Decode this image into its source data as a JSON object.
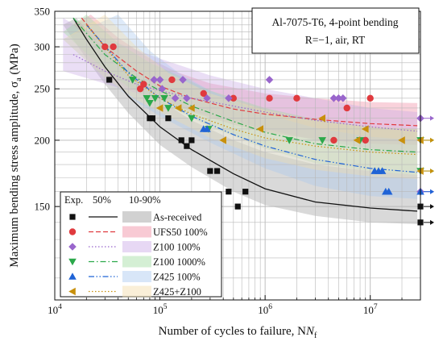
{
  "chart_data": {
    "type": "scatter",
    "title": "",
    "xlabel": "Number of cycles to failure, N",
    "xlabel_sub": "f",
    "ylabel": "Maximum bending stress amplitude, σ",
    "ylabel_sub": "a",
    "ylabel_unit": " (MPa)",
    "x_scale": "log",
    "y_scale": "log",
    "xlim": [
      10000,
      30000000
    ],
    "ylim": [
      100,
      350
    ],
    "x_ticks": [
      10000,
      100000,
      1000000,
      10000000
    ],
    "x_tick_labels": [
      [
        "10",
        "4"
      ],
      [
        "10",
        "5"
      ],
      [
        "10",
        "6"
      ],
      [
        "10",
        "7"
      ]
    ],
    "y_ticks": [
      150,
      200,
      250,
      300,
      350
    ],
    "y_tick_labels": [
      "150",
      "200",
      "250",
      "300",
      "350"
    ],
    "grid": true,
    "annotation_lines": [
      "Al-7075-T6, 4-point bending",
      "R=−1, air, RT"
    ],
    "legend_headers": [
      "Exp.",
      "50%",
      "10-90%"
    ],
    "legend_position": "bottom-left",
    "runout_x": 30000000,
    "series": [
      {
        "name": "As-received",
        "color": "#111111",
        "band_color": "#9a9a9a",
        "marker": "square",
        "line_style": "solid",
        "points": [
          [
            33000,
            260
          ],
          [
            80000,
            220
          ],
          [
            85000,
            220
          ],
          [
            120000,
            220
          ],
          [
            160000,
            200
          ],
          [
            200000,
            200
          ],
          [
            180000,
            195
          ],
          [
            300000,
            175
          ],
          [
            350000,
            175
          ],
          [
            450000,
            160
          ],
          [
            650000,
            160
          ],
          [
            550000,
            150
          ]
        ],
        "runouts": [
          150,
          140
        ],
        "fit50": [
          [
            15000,
            340
          ],
          [
            20000,
            310
          ],
          [
            30000,
            275
          ],
          [
            50000,
            242
          ],
          [
            100000,
            212
          ],
          [
            200000,
            192
          ],
          [
            500000,
            173
          ],
          [
            1000000,
            162
          ],
          [
            3000000,
            153
          ],
          [
            10000000,
            149
          ],
          [
            28000000,
            147
          ]
        ],
        "band_upper": [
          [
            16000,
            340
          ],
          [
            30000,
            295
          ],
          [
            50000,
            265
          ],
          [
            100000,
            238
          ],
          [
            200000,
            218
          ],
          [
            500000,
            200
          ],
          [
            1000000,
            190
          ],
          [
            3000000,
            180
          ],
          [
            10000000,
            175
          ],
          [
            28000000,
            172
          ]
        ],
        "band_lower": [
          [
            12000,
            330
          ],
          [
            20000,
            285
          ],
          [
            30000,
            255
          ],
          [
            50000,
            225
          ],
          [
            100000,
            196
          ],
          [
            200000,
            178
          ],
          [
            500000,
            160
          ],
          [
            1000000,
            151
          ],
          [
            3000000,
            144
          ],
          [
            10000000,
            140
          ],
          [
            28000000,
            139
          ]
        ]
      },
      {
        "name": "UFS50 100%",
        "color": "#e03a3e",
        "band_color": "#f08aa0",
        "marker": "circle",
        "line_style": "dashed",
        "points": [
          [
            30000,
            300
          ],
          [
            36000,
            300
          ],
          [
            65000,
            250
          ],
          [
            70000,
            255
          ],
          [
            130000,
            260
          ],
          [
            260000,
            245
          ],
          [
            500000,
            240
          ],
          [
            1100000,
            240
          ],
          [
            2000000,
            240
          ],
          [
            4500000,
            200
          ],
          [
            6000000,
            230
          ],
          [
            9000000,
            200
          ],
          [
            10000000,
            240
          ]
        ],
        "runouts": [],
        "fit50": [
          [
            18000,
            340
          ],
          [
            30000,
            300
          ],
          [
            60000,
            270
          ],
          [
            100000,
            253
          ],
          [
            200000,
            240
          ],
          [
            500000,
            229
          ],
          [
            1000000,
            224
          ],
          [
            3000000,
            219
          ],
          [
            10000000,
            215
          ],
          [
            28000000,
            213
          ]
        ],
        "band_upper": [
          [
            22000,
            345
          ],
          [
            40000,
            312
          ],
          [
            80000,
            285
          ],
          [
            150000,
            268
          ],
          [
            300000,
            256
          ],
          [
            1000000,
            245
          ],
          [
            3000000,
            240
          ],
          [
            10000000,
            236
          ],
          [
            28000000,
            235
          ]
        ],
        "band_lower": [
          [
            15000,
            330
          ],
          [
            30000,
            290
          ],
          [
            60000,
            258
          ],
          [
            100000,
            240
          ],
          [
            200000,
            226
          ],
          [
            500000,
            214
          ],
          [
            1000000,
            207
          ],
          [
            3000000,
            201
          ],
          [
            10000000,
            197
          ],
          [
            28000000,
            196
          ]
        ]
      },
      {
        "name": "Z100 100%",
        "color": "#9966cc",
        "band_color": "#c9a8e6",
        "marker": "diamond",
        "line_style": "dotted",
        "points": [
          [
            88000,
            260
          ],
          [
            100000,
            260
          ],
          [
            105000,
            250
          ],
          [
            140000,
            240
          ],
          [
            165000,
            260
          ],
          [
            180000,
            240
          ],
          [
            280000,
            240
          ],
          [
            450000,
            240
          ],
          [
            1100000,
            260
          ],
          [
            4500000,
            240
          ],
          [
            5000000,
            240
          ],
          [
            5500000,
            240
          ]
        ],
        "runouts": [
          220,
          160
        ],
        "fit50": [
          [
            15000,
            290
          ],
          [
            30000,
            270
          ],
          [
            60000,
            255
          ],
          [
            100000,
            248
          ],
          [
            200000,
            240
          ],
          [
            500000,
            232
          ],
          [
            1000000,
            226
          ],
          [
            3000000,
            218
          ],
          [
            10000000,
            212
          ],
          [
            28000000,
            208
          ]
        ],
        "band_upper": [
          [
            12000,
            340
          ],
          [
            20000,
            320
          ],
          [
            50000,
            300
          ],
          [
            100000,
            285
          ],
          [
            300000,
            265
          ],
          [
            1000000,
            250
          ],
          [
            3000000,
            240
          ],
          [
            10000000,
            230
          ],
          [
            28000000,
            226
          ]
        ],
        "band_lower": [
          [
            12000,
            270
          ],
          [
            20000,
            262
          ],
          [
            50000,
            248
          ],
          [
            100000,
            238
          ],
          [
            300000,
            222
          ],
          [
            1000000,
            210
          ],
          [
            3000000,
            200
          ],
          [
            10000000,
            193
          ],
          [
            28000000,
            188
          ]
        ]
      },
      {
        "name": "Z100 1000%",
        "color": "#2ba84a",
        "band_color": "#9fdc9f",
        "marker": "triangle-down",
        "line_style": "dashdot",
        "points": [
          [
            55000,
            260
          ],
          [
            75000,
            240
          ],
          [
            80000,
            235
          ],
          [
            90000,
            240
          ],
          [
            110000,
            240
          ],
          [
            120000,
            230
          ],
          [
            200000,
            220
          ],
          [
            290000,
            210
          ],
          [
            1700000,
            200
          ],
          [
            3500000,
            200
          ],
          [
            8000000,
            200
          ]
        ],
        "runouts": [
          200,
          175
        ],
        "fit50": [
          [
            15000,
            340
          ],
          [
            30000,
            290
          ],
          [
            60000,
            262
          ],
          [
            100000,
            248
          ],
          [
            200000,
            232
          ],
          [
            500000,
            217
          ],
          [
            1000000,
            207
          ],
          [
            3000000,
            197
          ],
          [
            10000000,
            192
          ],
          [
            28000000,
            190
          ]
        ],
        "band_upper": [
          [
            20000,
            345
          ],
          [
            40000,
            305
          ],
          [
            80000,
            280
          ],
          [
            150000,
            265
          ],
          [
            300000,
            248
          ],
          [
            1000000,
            230
          ],
          [
            3000000,
            219
          ],
          [
            10000000,
            212
          ],
          [
            28000000,
            210
          ]
        ],
        "band_lower": [
          [
            12000,
            320
          ],
          [
            25000,
            280
          ],
          [
            50000,
            252
          ],
          [
            100000,
            236
          ],
          [
            300000,
            212
          ],
          [
            1000000,
            193
          ],
          [
            3000000,
            181
          ],
          [
            10000000,
            175
          ],
          [
            28000000,
            172
          ]
        ]
      },
      {
        "name": "Z425 100%",
        "color": "#1f63d6",
        "band_color": "#a8c8f0",
        "marker": "triangle-up",
        "line_style": "dashdotdot",
        "points": [
          [
            260000,
            210
          ],
          [
            280000,
            210
          ],
          [
            11000000,
            175
          ],
          [
            12000000,
            175
          ],
          [
            13000000,
            175
          ],
          [
            14000000,
            160
          ],
          [
            15000000,
            160
          ]
        ],
        "runouts": [
          160
        ],
        "fit50": [
          [
            20000,
            330
          ],
          [
            50000,
            268
          ],
          [
            100000,
            240
          ],
          [
            200000,
            222
          ],
          [
            500000,
            205
          ],
          [
            1000000,
            195
          ],
          [
            3000000,
            184
          ],
          [
            10000000,
            177
          ],
          [
            28000000,
            174
          ]
        ],
        "band_upper": [
          [
            40000,
            345
          ],
          [
            80000,
            295
          ],
          [
            150000,
            268
          ],
          [
            300000,
            248
          ],
          [
            1000000,
            224
          ],
          [
            3000000,
            211
          ],
          [
            10000000,
            203
          ],
          [
            28000000,
            200
          ]
        ],
        "band_lower": [
          [
            12000,
            310
          ],
          [
            30000,
            262
          ],
          [
            60000,
            236
          ],
          [
            100000,
            222
          ],
          [
            300000,
            198
          ],
          [
            1000000,
            177
          ],
          [
            3000000,
            164
          ],
          [
            10000000,
            157
          ],
          [
            28000000,
            155
          ]
        ]
      },
      {
        "name": "Z425+Z100",
        "color": "#c8900c",
        "band_color": "#f5dca8",
        "marker": "triangle-left",
        "line_style": "dotted",
        "points": [
          [
            100000,
            230
          ],
          [
            150000,
            230
          ],
          [
            200000,
            230
          ],
          [
            400000,
            200
          ],
          [
            900000,
            210
          ],
          [
            3500000,
            220
          ],
          [
            7500000,
            200
          ],
          [
            9000000,
            210
          ],
          [
            20000000,
            200
          ]
        ],
        "runouts": [
          200,
          175
        ],
        "fit50": [
          [
            20000,
            330
          ],
          [
            50000,
            265
          ],
          [
            100000,
            240
          ],
          [
            200000,
            224
          ],
          [
            500000,
            210
          ],
          [
            1000000,
            202
          ],
          [
            3000000,
            195
          ],
          [
            10000000,
            190
          ],
          [
            28000000,
            188
          ]
        ],
        "band_upper": [
          [
            30000,
            345
          ],
          [
            60000,
            300
          ],
          [
            120000,
            268
          ],
          [
            300000,
            245
          ],
          [
            1000000,
            228
          ],
          [
            3000000,
            218
          ],
          [
            10000000,
            212
          ],
          [
            28000000,
            210
          ]
        ],
        "band_lower": [
          [
            12000,
            310
          ],
          [
            30000,
            262
          ],
          [
            60000,
            238
          ],
          [
            100000,
            226
          ],
          [
            300000,
            202
          ],
          [
            1000000,
            185
          ],
          [
            3000000,
            176
          ],
          [
            10000000,
            171
          ],
          [
            28000000,
            169
          ]
        ]
      }
    ]
  }
}
